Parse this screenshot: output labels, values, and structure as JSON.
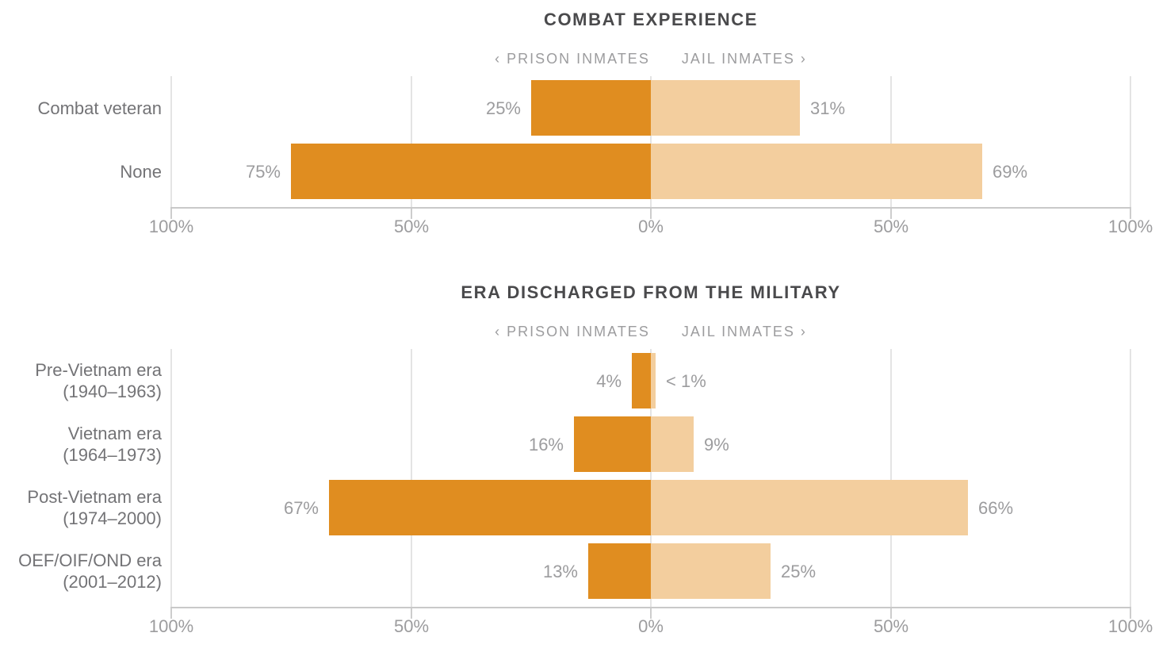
{
  "page": {
    "background": "#ffffff"
  },
  "colors": {
    "prison_bar": "#e08d20",
    "jail_bar": "#f3ce9e",
    "gridline": "#e4e4e4",
    "axis_line": "#c9c9c9",
    "title_text": "#4a4a4c",
    "legend_text": "#9c9c9e",
    "category_text": "#737376",
    "value_text": "#9c9c9e"
  },
  "chart_data": [
    {
      "type": "bar",
      "orientation": "horizontal-diverging",
      "title": "COMBAT EXPERIENCE",
      "legend": {
        "left": "‹ PRISON INMATES",
        "right": "JAIL INMATES ›"
      },
      "categories": [
        "Combat veteran",
        "None"
      ],
      "category_lines": [
        [
          "Combat veteran"
        ],
        [
          "None"
        ]
      ],
      "series": [
        {
          "name": "Prison inmates",
          "side": "left",
          "values": [
            25,
            75
          ],
          "labels": [
            "25%",
            "75%"
          ]
        },
        {
          "name": "Jail inmates",
          "side": "right",
          "values": [
            31,
            69
          ],
          "labels": [
            "31%",
            "69%"
          ]
        }
      ],
      "axis": {
        "ticks": [
          "100%",
          "50%",
          "0%",
          "50%",
          "100%"
        ],
        "xlim": [
          -100,
          100
        ],
        "unit": "percent",
        "grid": true
      }
    },
    {
      "type": "bar",
      "orientation": "horizontal-diverging",
      "title": "ERA DISCHARGED FROM THE MILITARY",
      "legend": {
        "left": "‹ PRISON INMATES",
        "right": "JAIL INMATES ›"
      },
      "categories": [
        "Pre-Vietnam era (1940–1963)",
        "Vietnam era (1964–1973)",
        "Post-Vietnam era (1974–2000)",
        "OEF/OIF/OND era (2001–2012)"
      ],
      "category_lines": [
        [
          "Pre-Vietnam era",
          "(1940–1963)"
        ],
        [
          "Vietnam era",
          "(1964–1973)"
        ],
        [
          "Post-Vietnam era",
          "(1974–2000)"
        ],
        [
          "OEF/OIF/OND era",
          "(2001–2012)"
        ]
      ],
      "series": [
        {
          "name": "Prison inmates",
          "side": "left",
          "values": [
            4,
            16,
            67,
            13
          ],
          "labels": [
            "4%",
            "16%",
            "67%",
            "13%"
          ]
        },
        {
          "name": "Jail inmates",
          "side": "right",
          "values": [
            1,
            9,
            66,
            25
          ],
          "labels": [
            "< 1%",
            "9%",
            "66%",
            "25%"
          ]
        }
      ],
      "axis": {
        "ticks": [
          "100%",
          "50%",
          "0%",
          "50%",
          "100%"
        ],
        "xlim": [
          -100,
          100
        ],
        "unit": "percent",
        "grid": true
      }
    }
  ]
}
